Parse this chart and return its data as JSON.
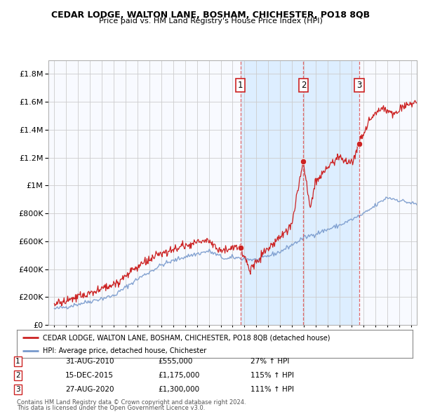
{
  "title": "CEDAR LODGE, WALTON LANE, BOSHAM, CHICHESTER, PO18 8QB",
  "subtitle": "Price paid vs. HM Land Registry's House Price Index (HPI)",
  "legend_line1": "CEDAR LODGE, WALTON LANE, BOSHAM, CHICHESTER, PO18 8QB (detached house)",
  "legend_line2": "HPI: Average price, detached house, Chichester",
  "footer1": "Contains HM Land Registry data © Crown copyright and database right 2024.",
  "footer2": "This data is licensed under the Open Government Licence v3.0.",
  "transactions": [
    {
      "num": 1,
      "date": "31-AUG-2010",
      "price": "£555,000",
      "hpi": "27% ↑ HPI",
      "year": 2010.667
    },
    {
      "num": 2,
      "date": "15-DEC-2015",
      "price": "£1,175,000",
      "hpi": "115% ↑ HPI",
      "year": 2015.958
    },
    {
      "num": 3,
      "date": "27-AUG-2020",
      "price": "£1,300,000",
      "hpi": "111% ↑ HPI",
      "year": 2020.656
    }
  ],
  "sale_values": [
    555000,
    1175000,
    1300000
  ],
  "sale_years": [
    2010.667,
    2015.958,
    2020.656
  ],
  "ylim": [
    0,
    1900000
  ],
  "xlim_start": 1994.5,
  "xlim_end": 2025.5,
  "red_color": "#cc2222",
  "blue_color": "#7799cc",
  "shade_color": "#ddeeff",
  "grid_color": "#cccccc",
  "dashed_color": "#dd4444",
  "plot_bg": "#f8faff"
}
